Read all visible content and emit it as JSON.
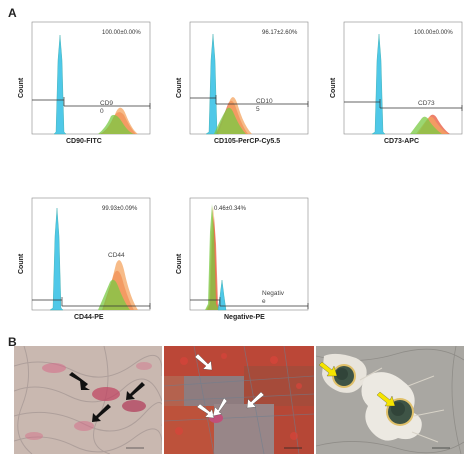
{
  "figure": {
    "panel_a_label": "A",
    "panel_b_label": "B"
  },
  "plots": [
    {
      "xlabel": "CD90-FITC",
      "ylabel": "Count",
      "stat": "100.00±0.00%",
      "gate_line1": "CD9",
      "gate_line2": "0"
    },
    {
      "xlabel": "CD105-PerCP-Cy5.5",
      "ylabel": "Count",
      "stat": "96.17±2.60%",
      "gate_line1": "CD10",
      "gate_line2": "5"
    },
    {
      "xlabel": "CD73-APC",
      "ylabel": "Count",
      "stat": "100.00±0.00%",
      "gate_line1": "CD73",
      "gate_line2": ""
    },
    {
      "xlabel": "CD44-PE",
      "ylabel": "Count",
      "stat": "99.93±0.09%",
      "gate_line1": "CD44",
      "gate_line2": ""
    },
    {
      "xlabel": "Negative-PE",
      "ylabel": "Count",
      "stat": "0.46±0.34%",
      "gate_line1": "Negativ",
      "gate_line2": "e"
    }
  ],
  "colors": {
    "isotype": "#4fc8e8",
    "green": "#7ac943",
    "orange": "#f4a460",
    "red": "#e8553a",
    "white_arrow": "#ffffff",
    "black_arrow": "#111111",
    "yellow_arrow": "#f5e400"
  },
  "micrographs": [
    {
      "arrows": "black-arrow-icon",
      "count": 3
    },
    {
      "arrows": "white-arrow-icon",
      "count": 4
    },
    {
      "arrows": "yellow-arrow-icon",
      "count": 2
    }
  ]
}
